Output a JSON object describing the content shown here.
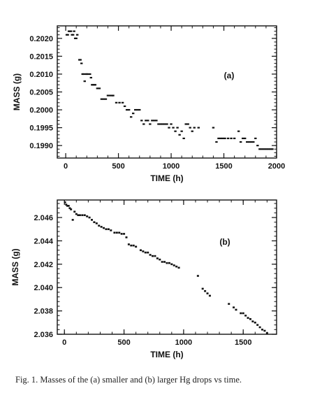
{
  "caption": "Fig. 1. Masses of the (a) smaller and (b) larger Hg drops vs time.",
  "chart_data": [
    {
      "type": "scatter",
      "panel_label": "(a)",
      "xlabel": "TIME (h)",
      "ylabel": "MASS (g)",
      "xlim": [
        -80,
        2000
      ],
      "ylim": [
        0.19865,
        0.20235
      ],
      "xticks": [
        0,
        500,
        1000,
        1500,
        2000
      ],
      "xtick_labels": [
        "0",
        "500",
        "1000",
        "1500",
        "2000"
      ],
      "yticks": [
        0.199,
        0.1995,
        0.2,
        0.2005,
        0.201,
        0.2015,
        0.202
      ],
      "ytick_labels": [
        "0.1990",
        "0.1995",
        "0.2000",
        "0.2005",
        "0.2010",
        "0.2015",
        "0.2020"
      ],
      "grid": false,
      "marker_color": "#111111",
      "x": [
        10,
        20,
        30,
        40,
        50,
        60,
        70,
        80,
        90,
        100,
        110,
        130,
        140,
        150,
        160,
        170,
        180,
        190,
        200,
        210,
        230,
        240,
        250,
        260,
        270,
        280,
        300,
        320,
        340,
        360,
        380,
        400,
        420,
        440,
        450,
        480,
        510,
        540,
        560,
        580,
        600,
        620,
        640,
        660,
        680,
        700,
        720,
        740,
        760,
        780,
        800,
        820,
        840,
        860,
        880,
        900,
        920,
        940,
        960,
        980,
        1000,
        1020,
        1040,
        1060,
        1080,
        1100,
        1120,
        1140,
        1160,
        1180,
        1200,
        1220,
        1260,
        1400,
        1430,
        1450,
        1470,
        1490,
        1510,
        1540,
        1570,
        1600,
        1640,
        1660,
        1680,
        1700,
        1720,
        1740,
        1760,
        1780,
        1800,
        1820,
        1840,
        1860,
        1880,
        1900,
        1920,
        1940,
        1960
      ],
      "y": [
        0.2021,
        0.2021,
        0.2022,
        0.2022,
        0.2022,
        0.2021,
        0.2021,
        0.2022,
        0.202,
        0.202,
        0.2021,
        0.2014,
        0.2014,
        0.2013,
        0.201,
        0.201,
        0.2008,
        0.201,
        0.201,
        0.201,
        0.201,
        0.2009,
        0.2007,
        0.2007,
        0.2007,
        0.2007,
        0.2006,
        0.2006,
        0.2003,
        0.2003,
        0.2003,
        0.2004,
        0.2004,
        0.2004,
        0.2004,
        0.2002,
        0.2002,
        0.2002,
        0.2001,
        0.2,
        0.2,
        0.1998,
        0.1999,
        0.2,
        0.2,
        0.2,
        0.1997,
        0.1996,
        0.1997,
        0.1997,
        0.1996,
        0.1997,
        0.1997,
        0.1997,
        0.1996,
        0.1996,
        0.1996,
        0.1996,
        0.1996,
        0.1995,
        0.1996,
        0.1995,
        0.1994,
        0.1995,
        0.1993,
        0.1994,
        0.1992,
        0.1996,
        0.1996,
        0.1995,
        0.1994,
        0.1995,
        0.1995,
        0.1995,
        0.1991,
        0.1992,
        0.1992,
        0.1992,
        0.1992,
        0.1992,
        0.1992,
        0.1992,
        0.1994,
        0.1991,
        0.1992,
        0.1992,
        0.1991,
        0.1991,
        0.1991,
        0.1991,
        0.1992,
        0.199,
        0.1989,
        0.1989,
        0.1989,
        0.1989,
        0.1989,
        0.1989,
        0.1989
      ]
    },
    {
      "type": "scatter",
      "panel_label": "(b)",
      "xlabel": "TIME (h)",
      "ylabel": "MASS (g)",
      "xlim": [
        -60,
        1780
      ],
      "ylim": [
        2.036,
        2.0475
      ],
      "xticks": [
        0,
        500,
        1000,
        1500
      ],
      "xtick_labels": [
        "0",
        "500",
        "1000",
        "1500"
      ],
      "yticks": [
        2.036,
        2.038,
        2.04,
        2.042,
        2.044,
        2.046
      ],
      "ytick_labels": [
        "2.036",
        "2.038",
        "2.040",
        "2.042",
        "2.044",
        "2.046"
      ],
      "grid": false,
      "marker_color": "#111111",
      "x": [
        5,
        15,
        25,
        35,
        45,
        55,
        70,
        85,
        100,
        115,
        130,
        150,
        170,
        190,
        210,
        230,
        250,
        270,
        290,
        310,
        330,
        350,
        370,
        390,
        420,
        440,
        460,
        480,
        500,
        520,
        540,
        560,
        580,
        600,
        640,
        660,
        680,
        700,
        720,
        740,
        760,
        780,
        800,
        820,
        840,
        860,
        880,
        900,
        920,
        940,
        960,
        1120,
        1160,
        1180,
        1200,
        1220,
        1380,
        1420,
        1440,
        1480,
        1500,
        1520,
        1540,
        1560,
        1580,
        1600,
        1620,
        1640,
        1660,
        1680,
        1700
      ],
      "y": [
        2.0473,
        2.0471,
        2.047,
        2.047,
        2.0468,
        2.0467,
        2.0458,
        2.0465,
        2.0463,
        2.0462,
        2.0462,
        2.0462,
        2.0462,
        2.0461,
        2.046,
        2.0458,
        2.0456,
        2.0455,
        2.0453,
        2.0452,
        2.0451,
        2.045,
        2.045,
        2.0449,
        2.0447,
        2.0447,
        2.0447,
        2.0446,
        2.0446,
        2.0443,
        2.0437,
        2.0436,
        2.0436,
        2.0435,
        2.0432,
        2.0431,
        2.043,
        2.043,
        2.0428,
        2.0427,
        2.0427,
        2.0425,
        2.0424,
        2.0422,
        2.0422,
        2.0421,
        2.0421,
        2.042,
        2.0419,
        2.0418,
        2.0417,
        2.041,
        2.0399,
        2.0397,
        2.0395,
        2.0393,
        2.0386,
        2.0383,
        2.0381,
        2.0378,
        2.0378,
        2.0376,
        2.0374,
        2.0373,
        2.0371,
        2.037,
        2.0368,
        2.0366,
        2.0364,
        2.0363,
        2.0361
      ]
    }
  ]
}
